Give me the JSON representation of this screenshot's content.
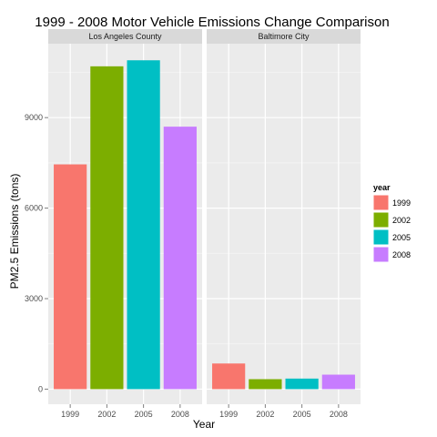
{
  "chart_data": {
    "type": "bar",
    "title": "1999 - 2008 Motor Vehicle Emissions Change Comparison",
    "xlabel": "Year",
    "ylabel": "PM2.5 Emissions (tons)",
    "categories": [
      "1999",
      "2002",
      "2005",
      "2008"
    ],
    "ylim": [
      -500,
      11450
    ],
    "yticks": [
      0,
      3000,
      6000,
      9000
    ],
    "grid": true,
    "legend": {
      "title": "year",
      "placement": "right",
      "entries": [
        "1999",
        "2002",
        "2005",
        "2008"
      ]
    },
    "facets": [
      {
        "name": "Los Angeles County",
        "values": [
          7450,
          10700,
          10900,
          8700
        ]
      },
      {
        "name": "Baltimore City",
        "values": [
          850,
          330,
          350,
          480
        ]
      }
    ]
  },
  "colors": {
    "1999": "#F8766D",
    "2002": "#7CAE00",
    "2005": "#00BFC4",
    "2008": "#C77CFF",
    "panel_background": "#EBEBEB",
    "strip_background": "#D9D9D9",
    "grid_major": "#FFFFFF",
    "grid_minor": "#F5F5F5"
  }
}
